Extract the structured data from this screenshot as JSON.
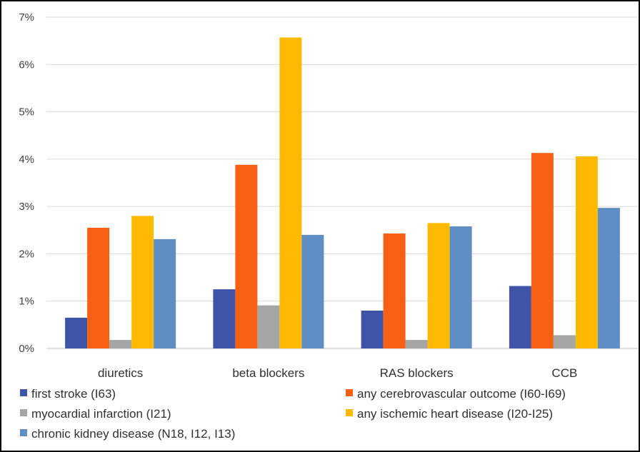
{
  "chart_data": {
    "type": "bar",
    "categories": [
      "diuretics",
      "beta blockers",
      "RAS blockers",
      "CCB"
    ],
    "series": [
      {
        "name": "first stroke (I63)",
        "color": "#3f54a6",
        "values": [
          0.65,
          1.25,
          0.8,
          1.32
        ]
      },
      {
        "name": "any cerebrovascular outcome (I60-I69)",
        "color": "#f65f14",
        "values": [
          2.55,
          3.88,
          2.43,
          4.13
        ]
      },
      {
        "name": "myocardial infarction (I21)",
        "color": "#a5a5a5",
        "values": [
          0.18,
          0.91,
          0.18,
          0.28
        ]
      },
      {
        "name": "any ischemic heart disease (I20-I25)",
        "color": "#ffba00",
        "values": [
          2.8,
          6.57,
          2.65,
          4.06
        ]
      },
      {
        "name": "chronic kidney disease (N18, I12, I13)",
        "color": "#5f8ec4",
        "values": [
          2.31,
          2.4,
          2.58,
          2.97
        ]
      }
    ],
    "yticks": [
      "0%",
      "1%",
      "2%",
      "3%",
      "4%",
      "5%",
      "6%",
      "7%"
    ],
    "ylim": [
      0,
      7
    ],
    "yunit": "%",
    "grid": true,
    "legend_position": "bottom"
  }
}
